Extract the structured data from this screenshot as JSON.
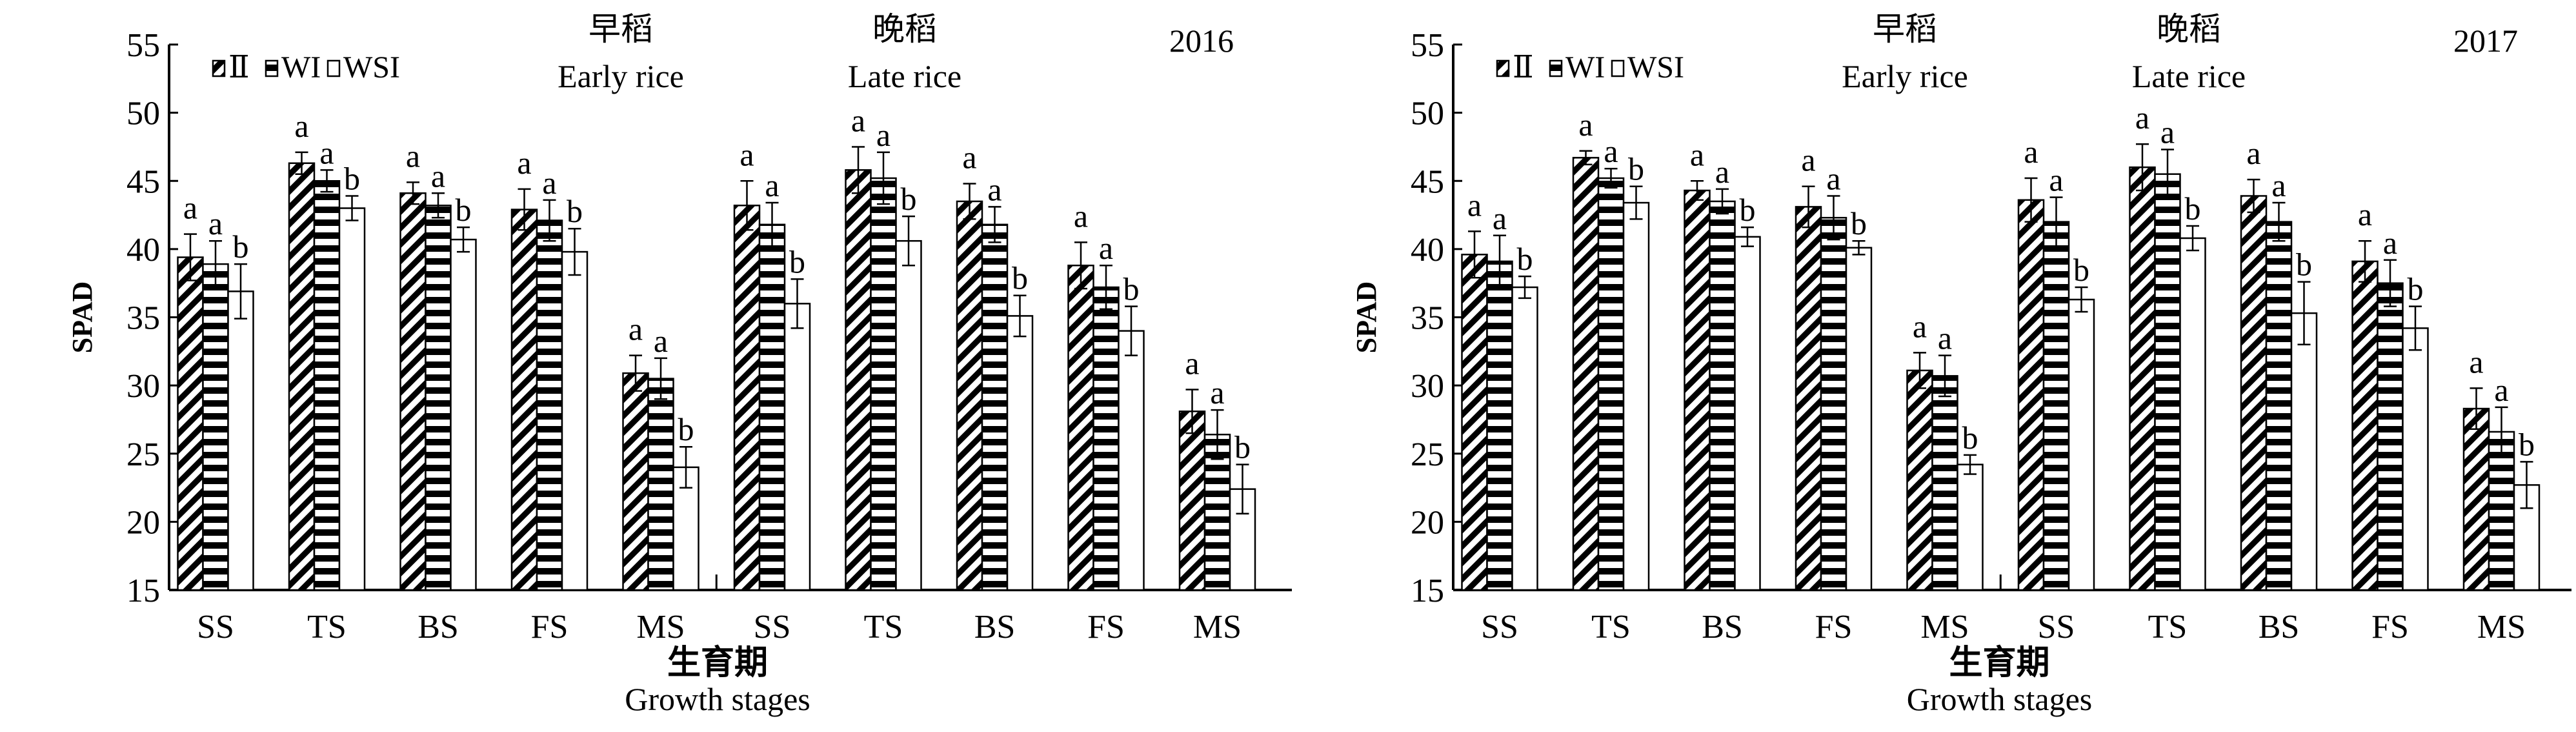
{
  "chart_data": [
    {
      "type": "bar",
      "year_label": "2016",
      "ylabel": "SPAD",
      "xlabel_cn": "生育期",
      "xlabel": "Growth stages",
      "ylim": [
        15,
        55
      ],
      "yticks": [
        15,
        20,
        25,
        30,
        35,
        40,
        45,
        50,
        55
      ],
      "season_labels": [
        {
          "cn": "早稻",
          "en": "Early rice"
        },
        {
          "cn": "晚稻",
          "en": "Late rice"
        }
      ],
      "categories": [
        "SS",
        "TS",
        "BS",
        "FS",
        "MS",
        "SS",
        "TS",
        "BS",
        "FS",
        "MS"
      ],
      "series": [
        {
          "name": "II",
          "pattern": "diagonal-hatch",
          "values": [
            39.4,
            46.3,
            44.1,
            42.9,
            30.9,
            43.2,
            45.8,
            43.5,
            38.8,
            28.1
          ],
          "errors": [
            1.7,
            0.8,
            0.8,
            1.5,
            1.3,
            1.8,
            1.7,
            1.3,
            1.7,
            1.6
          ],
          "letters": [
            "a",
            "a",
            "a",
            "a",
            "a",
            "a",
            "a",
            "a",
            "a",
            "a"
          ]
        },
        {
          "name": "WI",
          "pattern": "horizontal-stripes",
          "values": [
            38.9,
            45.0,
            43.2,
            42.1,
            30.5,
            41.8,
            45.2,
            41.8,
            37.2,
            26.4
          ],
          "errors": [
            1.7,
            0.8,
            0.9,
            1.5,
            1.5,
            1.6,
            1.9,
            1.3,
            1.6,
            1.8
          ],
          "letters": [
            "a",
            "a",
            "a",
            "a",
            "a",
            "a",
            "a",
            "a",
            "a",
            "a"
          ]
        },
        {
          "name": "WSI",
          "pattern": "white",
          "values": [
            36.9,
            43.0,
            40.7,
            39.8,
            24.0,
            36.0,
            40.6,
            35.1,
            34.0,
            22.4
          ],
          "errors": [
            2.0,
            0.9,
            0.9,
            1.7,
            1.5,
            1.8,
            1.8,
            1.5,
            1.8,
            1.8
          ],
          "letters": [
            "b",
            "b",
            "b",
            "b",
            "b",
            "b",
            "b",
            "b",
            "b",
            "b"
          ]
        }
      ],
      "legend": "top-left"
    },
    {
      "type": "bar",
      "year_label": "2017",
      "ylabel": "SPAD",
      "xlabel_cn": "生育期",
      "xlabel": "Growth stages",
      "ylim": [
        15,
        55
      ],
      "yticks": [
        15,
        20,
        25,
        30,
        35,
        40,
        45,
        50,
        55
      ],
      "season_labels": [
        {
          "cn": "早稻",
          "en": "Early rice"
        },
        {
          "cn": "晚稻",
          "en": "Late rice"
        }
      ],
      "categories": [
        "SS",
        "TS",
        "BS",
        "FS",
        "MS",
        "SS",
        "TS",
        "BS",
        "FS",
        "MS"
      ],
      "series": [
        {
          "name": "II",
          "pattern": "diagonal-hatch",
          "values": [
            39.6,
            46.7,
            44.3,
            43.1,
            31.1,
            43.6,
            46.0,
            43.9,
            39.1,
            28.3
          ],
          "errors": [
            1.7,
            0.5,
            0.7,
            1.5,
            1.3,
            1.6,
            1.7,
            1.2,
            1.5,
            1.5
          ],
          "letters": [
            "a",
            "a",
            "a",
            "a",
            "a",
            "a",
            "a",
            "a",
            "a",
            "a"
          ]
        },
        {
          "name": "WI",
          "pattern": "horizontal-stripes",
          "values": [
            39.1,
            45.2,
            43.5,
            42.3,
            30.7,
            42.0,
            45.5,
            42.0,
            37.5,
            26.6
          ],
          "errors": [
            1.9,
            0.7,
            0.9,
            1.6,
            1.5,
            1.8,
            1.8,
            1.4,
            1.7,
            1.8
          ],
          "letters": [
            "a",
            "a",
            "a",
            "a",
            "a",
            "a",
            "a",
            "a",
            "a",
            "a"
          ]
        },
        {
          "name": "WSI",
          "pattern": "white",
          "values": [
            37.2,
            43.4,
            40.9,
            40.1,
            24.2,
            36.3,
            40.8,
            35.3,
            34.2,
            22.7
          ],
          "errors": [
            0.8,
            1.2,
            0.7,
            0.5,
            0.7,
            0.9,
            0.9,
            2.3,
            1.6,
            1.7
          ],
          "letters": [
            "b",
            "b",
            "b",
            "b",
            "b",
            "b",
            "b",
            "b",
            "b",
            "b"
          ]
        }
      ],
      "legend": "top-left"
    }
  ]
}
